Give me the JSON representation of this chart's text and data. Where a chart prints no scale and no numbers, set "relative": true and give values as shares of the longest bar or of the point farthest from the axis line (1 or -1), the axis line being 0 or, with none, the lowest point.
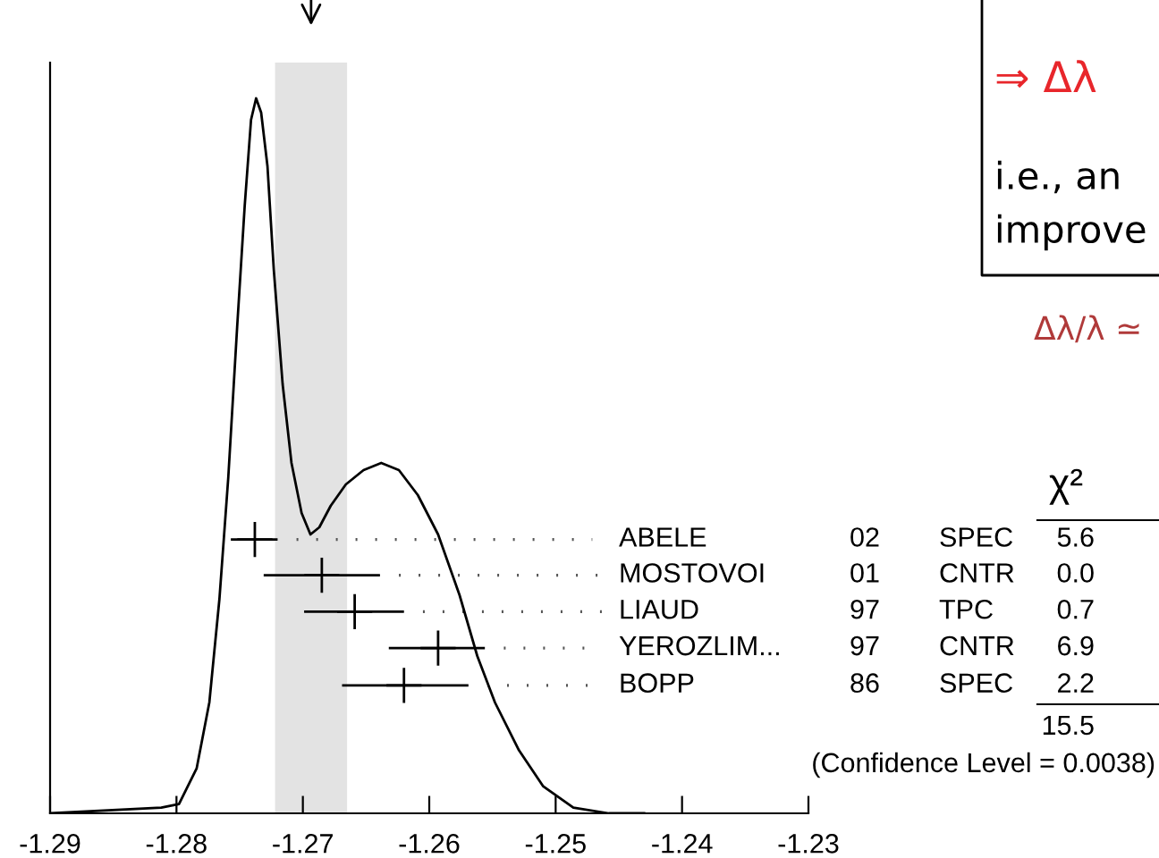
{
  "chart_data": {
    "type": "line",
    "relative": true,
    "xlim": [
      -1.29,
      -1.23
    ],
    "xticks": [
      -1.29,
      -1.28,
      -1.27,
      -1.26,
      -1.25,
      -1.24,
      -1.23
    ],
    "grid": false,
    "legend": "right",
    "series": [
      {
        "color": "#000000",
        "x": [
          -1.29,
          -1.2812,
          -1.2798,
          -1.2784,
          -1.2774,
          -1.2766,
          -1.2759,
          -1.2752,
          -1.2746,
          -1.2741,
          -1.2737,
          -1.2733,
          -1.2728,
          -1.2723,
          -1.2716,
          -1.2709,
          -1.2701,
          -1.2694,
          -1.2687,
          -1.2678,
          -1.2666,
          -1.2652,
          -1.2638,
          -1.2624,
          -1.2609,
          -1.2593,
          -1.2576,
          -1.2562,
          -1.2548,
          -1.2529,
          -1.251,
          -1.2486,
          -1.2458,
          -1.243
        ],
        "values": [
          0,
          0.008,
          0.013,
          0.063,
          0.155,
          0.3,
          0.47,
          0.68,
          0.85,
          0.97,
          1.0,
          0.98,
          0.905,
          0.76,
          0.6,
          0.49,
          0.42,
          0.39,
          0.4,
          0.43,
          0.46,
          0.48,
          0.49,
          0.48,
          0.445,
          0.39,
          0.305,
          0.22,
          0.155,
          0.088,
          0.038,
          0.008,
          0,
          0
        ]
      },
      {
        "type": "scatter",
        "marker": "cross",
        "name": "ABELE",
        "color": "#000000",
        "x": [
          -1.2738
        ],
        "values": [
          0.383
        ],
        "xerrors": [
          [
            -1.2757,
            -1.272
          ]
        ]
      },
      {
        "type": "scatter",
        "marker": "cross",
        "name": "MOSTOVOI",
        "color": "#000000",
        "x": [
          -1.2685
        ],
        "values": [
          0.333
        ],
        "xerrors": [
          [
            -1.2731,
            -1.2639
          ]
        ]
      },
      {
        "type": "scatter",
        "marker": "cross",
        "name": "LIAUD",
        "color": "#000000",
        "x": [
          -1.2659
        ],
        "values": [
          0.282
        ],
        "xerrors": [
          [
            -1.2699,
            -1.262
          ]
        ]
      },
      {
        "type": "scatter",
        "marker": "cross",
        "name": "YEROZLIM...",
        "color": "#000000",
        "x": [
          -1.2593
        ],
        "values": [
          0.231
        ],
        "xerrors": [
          [
            -1.2632,
            -1.2556
          ]
        ]
      },
      {
        "type": "scatter",
        "marker": "cross",
        "name": "BOPP",
        "color": "#000000",
        "x": [
          -1.262
        ],
        "values": [
          0.179
        ],
        "xerrors": [
          [
            -1.2669,
            -1.2569
          ]
        ]
      }
    ],
    "bands": [
      {
        "axis": "x",
        "from": -1.2722,
        "to": -1.2665,
        "color": "#e3e3e3"
      }
    ],
    "annotations": [
      "χ²",
      "02",
      "SPEC",
      "5.6",
      "01",
      "CNTR",
      "0.0",
      "97",
      "TPC",
      "0.7",
      "97",
      "CNTR",
      "6.9",
      "86",
      "SPEC",
      "2.2",
      "15.5",
      "(Confidence Level = 0.0038)",
      "⇒ Δλ",
      "i.e., an",
      "improve",
      "Δλ/λ ≃"
    ]
  }
}
